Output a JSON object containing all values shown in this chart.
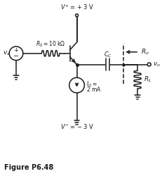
{
  "bg_color": "#ffffff",
  "line_color": "#1a1a1a",
  "lw": 1.1,
  "fig_label": "Figure P6.48",
  "vplus_text": "V^{+} = +3 V",
  "vminus_text": "V^{-} = -3 V",
  "rs_text": "R_S = 10 k\\Omega",
  "cc_text": "C_C",
  "iq_text": "I_Q=\n2 mA",
  "ro_text": "R_o",
  "rl_text": "R_L",
  "vs_text": "v_s",
  "vo_text": "v_o"
}
